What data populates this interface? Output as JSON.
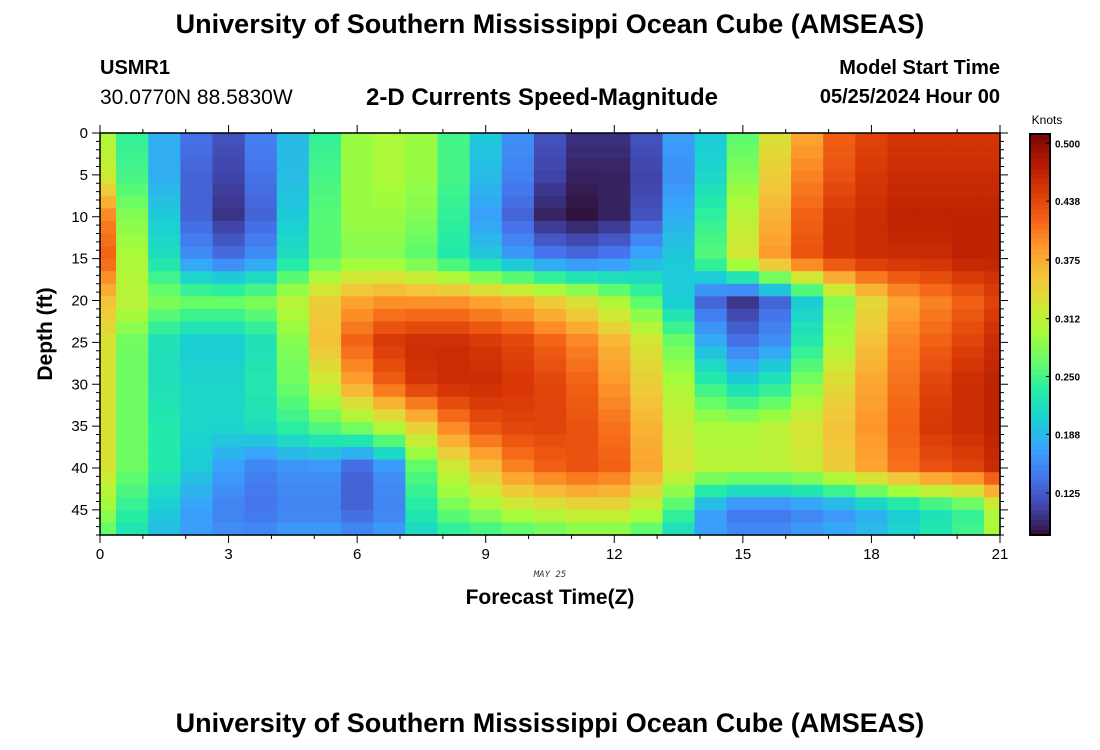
{
  "header": {
    "title": "University of Southern Mississippi Ocean Cube (AMSEAS)",
    "station_id": "USMR1",
    "station_coords": "30.0770N  88.5830W",
    "plot_title": "2-D Currents Speed-Magnitude",
    "model_start_label": "Model Start Time",
    "model_start_value": "05/25/2024 Hour 00"
  },
  "footer": {
    "title": "University of Southern Mississippi Ocean Cube (AMSEAS)"
  },
  "chart_data": {
    "type": "heatmap",
    "title": "2-D Currents Speed-Magnitude",
    "xlabel": "Forecast Time(Z)",
    "ylabel": "Depth (ft)",
    "date_label": "MAY 25",
    "xlim": [
      0,
      21
    ],
    "ylim": [
      0,
      48
    ],
    "x_ticks": [
      "0",
      "3",
      "6",
      "9",
      "12",
      "15",
      "18",
      "21"
    ],
    "y_ticks": [
      "0",
      "5",
      "10",
      "15",
      "20",
      "25",
      "30",
      "35",
      "40",
      "45"
    ],
    "colorbar": {
      "unit": "Knots",
      "min": 0.08,
      "max": 0.51,
      "ticks": [
        "0.500",
        "0.438",
        "0.375",
        "0.312",
        "0.250",
        "0.188",
        "0.125"
      ],
      "colors": [
        "#30123b",
        "#4145ab",
        "#4675ed",
        "#39a2fc",
        "#1bcfd4",
        "#24eca6",
        "#61fc6c",
        "#a4fc3b",
        "#d1e834",
        "#f3c63a",
        "#fe9b2d",
        "#f36315",
        "#d93806",
        "#b11901",
        "#7a0402"
      ]
    },
    "x": [
      0,
      0.75,
      1.5,
      2.25,
      3,
      3.75,
      4.5,
      5.25,
      6,
      6.75,
      7.5,
      8.25,
      9,
      9.75,
      10.5,
      11.25,
      12,
      12.75,
      13.5,
      14.25,
      15,
      15.75,
      16.5,
      17.25,
      18,
      18.75,
      19.5,
      20.25,
      21
    ],
    "depths": [
      0,
      5,
      10,
      15,
      20,
      25,
      30,
      35,
      40,
      45,
      48
    ],
    "values": [
      [
        0.3,
        0.24,
        0.18,
        0.14,
        0.12,
        0.15,
        0.19,
        0.24,
        0.29,
        0.3,
        0.29,
        0.25,
        0.2,
        0.16,
        0.12,
        0.1,
        0.1,
        0.12,
        0.17,
        0.2,
        0.26,
        0.33,
        0.38,
        0.42,
        0.44,
        0.45,
        0.45,
        0.45,
        0.45
      ],
      [
        0.32,
        0.25,
        0.18,
        0.13,
        0.11,
        0.14,
        0.19,
        0.25,
        0.29,
        0.3,
        0.29,
        0.25,
        0.19,
        0.15,
        0.11,
        0.09,
        0.09,
        0.11,
        0.16,
        0.21,
        0.28,
        0.35,
        0.4,
        0.43,
        0.45,
        0.46,
        0.46,
        0.46,
        0.46
      ],
      [
        0.4,
        0.28,
        0.2,
        0.13,
        0.1,
        0.13,
        0.2,
        0.26,
        0.29,
        0.29,
        0.28,
        0.24,
        0.17,
        0.13,
        0.09,
        0.08,
        0.09,
        0.12,
        0.18,
        0.24,
        0.31,
        0.37,
        0.42,
        0.45,
        0.46,
        0.47,
        0.47,
        0.47,
        0.47
      ],
      [
        0.42,
        0.3,
        0.22,
        0.16,
        0.14,
        0.16,
        0.22,
        0.26,
        0.28,
        0.28,
        0.26,
        0.23,
        0.2,
        0.17,
        0.15,
        0.14,
        0.15,
        0.18,
        0.2,
        0.26,
        0.33,
        0.39,
        0.43,
        0.45,
        0.46,
        0.46,
        0.46,
        0.47,
        0.47
      ],
      [
        0.36,
        0.31,
        0.28,
        0.27,
        0.27,
        0.28,
        0.31,
        0.35,
        0.38,
        0.39,
        0.39,
        0.39,
        0.38,
        0.37,
        0.35,
        0.33,
        0.3,
        0.26,
        0.2,
        0.13,
        0.1,
        0.13,
        0.2,
        0.28,
        0.34,
        0.38,
        0.4,
        0.42,
        0.44
      ],
      [
        0.33,
        0.27,
        0.22,
        0.2,
        0.2,
        0.22,
        0.28,
        0.36,
        0.42,
        0.45,
        0.46,
        0.46,
        0.45,
        0.44,
        0.42,
        0.4,
        0.37,
        0.33,
        0.27,
        0.18,
        0.14,
        0.16,
        0.23,
        0.3,
        0.36,
        0.4,
        0.42,
        0.44,
        0.46
      ],
      [
        0.33,
        0.27,
        0.22,
        0.21,
        0.21,
        0.23,
        0.27,
        0.32,
        0.38,
        0.42,
        0.45,
        0.46,
        0.46,
        0.45,
        0.44,
        0.42,
        0.39,
        0.35,
        0.3,
        0.24,
        0.21,
        0.23,
        0.28,
        0.34,
        0.38,
        0.41,
        0.44,
        0.46,
        0.47
      ],
      [
        0.33,
        0.27,
        0.23,
        0.21,
        0.21,
        0.22,
        0.24,
        0.26,
        0.28,
        0.31,
        0.35,
        0.4,
        0.43,
        0.44,
        0.44,
        0.43,
        0.41,
        0.37,
        0.32,
        0.3,
        0.3,
        0.31,
        0.33,
        0.36,
        0.39,
        0.42,
        0.45,
        0.46,
        0.47
      ],
      [
        0.33,
        0.27,
        0.23,
        0.2,
        0.17,
        0.15,
        0.16,
        0.16,
        0.13,
        0.16,
        0.26,
        0.32,
        0.36,
        0.4,
        0.42,
        0.43,
        0.42,
        0.38,
        0.33,
        0.31,
        0.31,
        0.31,
        0.32,
        0.35,
        0.38,
        0.41,
        0.43,
        0.44,
        0.46
      ],
      [
        0.29,
        0.24,
        0.2,
        0.17,
        0.15,
        0.14,
        0.15,
        0.15,
        0.13,
        0.15,
        0.23,
        0.27,
        0.29,
        0.31,
        0.32,
        0.33,
        0.33,
        0.31,
        0.25,
        0.17,
        0.14,
        0.14,
        0.15,
        0.16,
        0.18,
        0.2,
        0.22,
        0.24,
        0.3
      ],
      [
        0.26,
        0.22,
        0.19,
        0.17,
        0.16,
        0.16,
        0.17,
        0.17,
        0.16,
        0.17,
        0.21,
        0.23,
        0.24,
        0.25,
        0.26,
        0.27,
        0.27,
        0.25,
        0.21,
        0.17,
        0.16,
        0.16,
        0.17,
        0.18,
        0.19,
        0.21,
        0.23,
        0.25,
        0.3
      ]
    ]
  }
}
